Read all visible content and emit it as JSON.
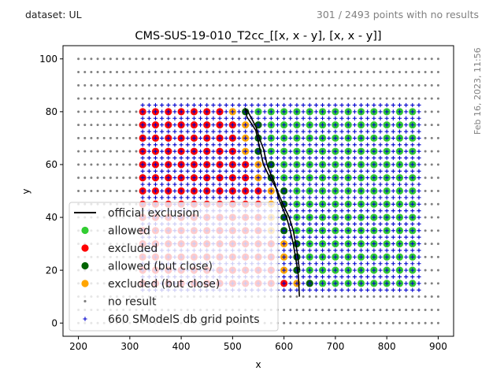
{
  "header": {
    "dataset_label": "dataset: UL",
    "no_results_label": "301 / 2493 points with no results",
    "timestamp": "Feb 16, 2023, 11:56"
  },
  "chart_data": {
    "type": "scatter",
    "title": "CMS-SUS-19-010_T2cc_[[x, x - y], [x, x - y]]",
    "xlabel": "x",
    "ylabel": "y",
    "xlim": [
      170,
      930
    ],
    "ylim": [
      -5,
      105
    ],
    "xticks": [
      200,
      300,
      400,
      500,
      600,
      700,
      800,
      900
    ],
    "yticks": [
      0,
      20,
      40,
      60,
      80,
      100
    ],
    "legend_position": "lower-left",
    "legend": [
      {
        "label": "official exclusion",
        "kind": "line",
        "color": "#000000"
      },
      {
        "label": "allowed",
        "kind": "dot",
        "color": "#32cd32"
      },
      {
        "label": "excluded",
        "kind": "dot",
        "color": "#ff0000"
      },
      {
        "label": "allowed (but close)",
        "kind": "dot",
        "color": "#006400"
      },
      {
        "label": "excluded (but close)",
        "kind": "dot",
        "color": "#ffa500"
      },
      {
        "label": "no result",
        "kind": "small",
        "color": "#808080"
      },
      {
        "label": "660 SModelS db grid points",
        "kind": "plus",
        "color": "#0000cd"
      }
    ],
    "colors": {
      "allowed": "#32cd32",
      "excluded": "#ff0000",
      "allowed_close": "#006400",
      "excluded_close": "#ffa500",
      "no_result": "#808080",
      "grid_points": "#0000cd",
      "exclusion": "#000000"
    },
    "no_result_grid": {
      "x_min": 200,
      "x_max": 900,
      "x_step": 12.5,
      "y_min": 0,
      "y_max": 100,
      "y_step": 5
    },
    "sms_grid": {
      "x_min": 325,
      "x_max": 862.5,
      "x_step": 12.5,
      "y_min": 12.5,
      "y_max": 82.5,
      "y_step": 2.5
    },
    "result_grid": {
      "x_min": 325,
      "x_max": 850,
      "x_step": 25,
      "y_min": 15,
      "y_max": 80,
      "y_step": 5
    },
    "exclusion_boundary": {
      "y": [
        15,
        20,
        25,
        30,
        35,
        40,
        45,
        50,
        55,
        60,
        65,
        70,
        75,
        80
      ],
      "x": [
        630,
        622,
        616,
        608,
        598,
        590,
        582,
        577,
        563,
        552,
        545,
        540,
        535,
        525
      ]
    },
    "close_band": 25,
    "official_exclusion_line": [
      [
        630,
        10
      ],
      [
        628,
        18
      ],
      [
        625,
        22
      ],
      [
        618,
        30
      ],
      [
        612,
        35
      ],
      [
        605,
        40
      ],
      [
        598,
        43
      ],
      [
        590,
        47
      ],
      [
        582,
        53
      ],
      [
        575,
        56
      ],
      [
        567,
        60
      ],
      [
        560,
        66
      ],
      [
        552,
        70
      ],
      [
        546,
        74
      ],
      [
        538,
        77
      ],
      [
        530,
        80
      ],
      [
        525,
        81
      ],
      [
        528,
        78
      ],
      [
        535,
        76
      ],
      [
        545,
        73
      ],
      [
        552,
        67
      ],
      [
        560,
        60
      ],
      [
        570,
        56
      ],
      [
        585,
        51
      ],
      [
        598,
        45
      ],
      [
        610,
        40
      ],
      [
        618,
        35
      ],
      [
        623,
        30
      ],
      [
        627,
        25
      ],
      [
        630,
        20
      ]
    ]
  }
}
